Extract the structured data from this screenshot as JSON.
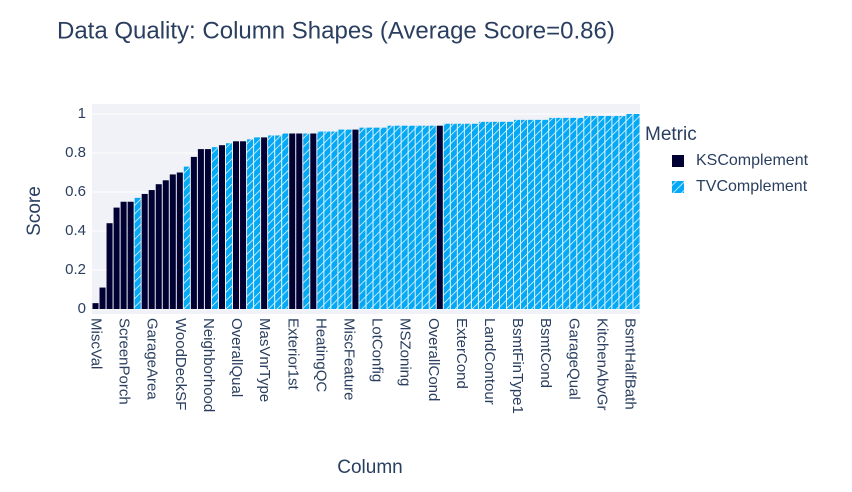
{
  "chart_data": {
    "type": "bar",
    "title": "Data Quality: Column Shapes (Average Score=0.86)",
    "x_label": "Column",
    "y_label": "Score",
    "legend_title": "Metric",
    "legend_position": "right",
    "grid": true,
    "ylim": [
      0,
      1
    ],
    "yticks": [
      0,
      0.2,
      0.4,
      0.6,
      0.8,
      1
    ],
    "categories": [
      "MiscVal",
      null,
      null,
      null,
      "ScreenPorch",
      null,
      null,
      null,
      "GarageArea",
      null,
      null,
      null,
      "WoodDeckSF",
      null,
      null,
      null,
      "Neighborhood",
      null,
      null,
      null,
      "OverallQual",
      null,
      null,
      null,
      "MasVnrType",
      null,
      null,
      null,
      "Exterior1st",
      null,
      null,
      null,
      "HeatingQC",
      null,
      null,
      null,
      "MiscFeature",
      null,
      null,
      null,
      "LotConfig",
      null,
      null,
      null,
      "MSZoning",
      null,
      null,
      null,
      "OverallCond",
      null,
      null,
      null,
      "ExterCond",
      null,
      null,
      null,
      "LandContour",
      null,
      null,
      null,
      "BsmtFinType1",
      null,
      null,
      null,
      "BsmtCond",
      null,
      null,
      null,
      "GarageQual",
      null,
      null,
      null,
      "KitchenAbvGr",
      null,
      null,
      null,
      "BsmtHalfBath",
      null
    ],
    "series": [
      {
        "name": "KSComplement",
        "color": "#000033",
        "pattern": "none",
        "values": [
          0.03,
          0.11,
          0.44,
          0.52,
          0.55,
          0.55,
          null,
          0.59,
          0.61,
          0.64,
          0.66,
          0.69,
          0.7,
          null,
          0.78,
          0.82,
          0.82,
          null,
          0.84,
          null,
          0.86,
          0.86,
          null,
          null,
          0.88,
          null,
          null,
          null,
          0.9,
          0.9,
          null,
          0.9,
          null,
          null,
          null,
          null,
          null,
          0.92,
          null,
          null,
          null,
          null,
          null,
          null,
          null,
          null,
          null,
          null,
          null,
          0.94,
          null,
          null,
          null,
          null,
          null,
          null,
          null,
          null,
          null,
          null,
          null,
          null,
          null,
          null,
          null,
          null,
          null,
          null,
          null,
          null,
          null,
          null,
          null,
          null,
          null,
          null,
          null,
          null
        ]
      },
      {
        "name": "TVComplement",
        "color": "#03a9f4",
        "pattern": "/",
        "values": [
          null,
          null,
          null,
          null,
          null,
          null,
          0.57,
          null,
          null,
          null,
          null,
          null,
          null,
          0.73,
          null,
          null,
          null,
          0.83,
          null,
          0.85,
          null,
          null,
          0.87,
          0.88,
          null,
          0.89,
          0.89,
          0.9,
          null,
          null,
          0.9,
          null,
          0.91,
          0.91,
          0.91,
          0.92,
          0.92,
          null,
          0.93,
          0.93,
          0.93,
          0.93,
          0.94,
          0.94,
          0.94,
          0.94,
          0.94,
          0.94,
          0.94,
          null,
          0.95,
          0.95,
          0.95,
          0.95,
          0.95,
          0.96,
          0.96,
          0.96,
          0.96,
          0.96,
          0.97,
          0.97,
          0.97,
          0.97,
          0.97,
          0.98,
          0.98,
          0.98,
          0.98,
          0.98,
          0.99,
          0.99,
          0.99,
          0.99,
          0.99,
          0.99,
          1.0,
          1.0
        ]
      }
    ]
  }
}
